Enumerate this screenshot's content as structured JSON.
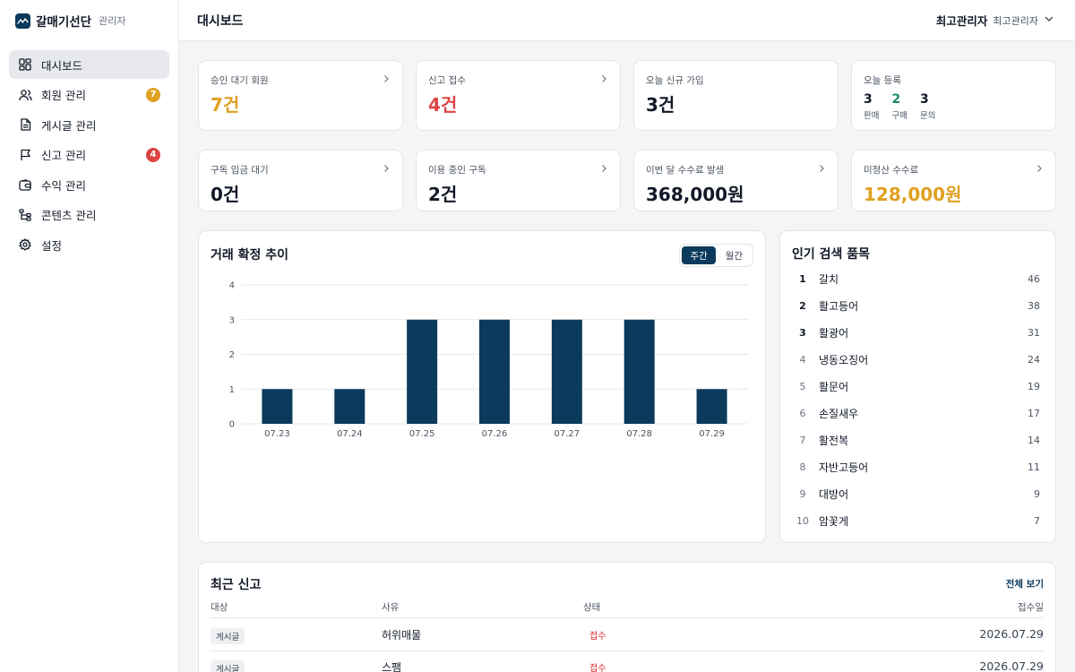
{
  "brand": {
    "name": "갈매기선단",
    "role": "관리자"
  },
  "sidebar": {
    "items": [
      {
        "label": "대시보드",
        "icon": "dashboard-icon"
      },
      {
        "label": "회원 관리",
        "icon": "users-icon",
        "badge": "7",
        "badge_color": "#e0a020"
      },
      {
        "label": "게시글 관리",
        "icon": "document-icon"
      },
      {
        "label": "신고 관리",
        "icon": "flag-icon",
        "badge": "4",
        "badge_color": "#dc4444"
      },
      {
        "label": "수익 관리",
        "icon": "wallet-icon"
      },
      {
        "label": "콘텐츠 관리",
        "icon": "tree-icon"
      },
      {
        "label": "설정",
        "icon": "gear-icon"
      }
    ]
  },
  "header": {
    "title": "대시보드",
    "user_name": "최고관리자",
    "user_role": "최고관리자"
  },
  "stats": {
    "pending_members": {
      "label": "승인 대기 회원",
      "value": "7건",
      "color": "#e0a020"
    },
    "reports": {
      "label": "신고 접수",
      "value": "4건",
      "color": "#dc4444"
    },
    "new_signups": {
      "label": "오늘 신규 가입",
      "value": "3건",
      "color": "#111827"
    },
    "today_reg": {
      "label": "오늘 등록",
      "items": [
        {
          "num": "3",
          "label": "판매",
          "color": "#111827"
        },
        {
          "num": "2",
          "label": "구매",
          "color": "#1f8a5c"
        },
        {
          "num": "3",
          "label": "문의",
          "color": "#111827"
        }
      ]
    },
    "sub_pending": {
      "label": "구독 입금 대기",
      "value": "0건",
      "color": "#111827"
    },
    "sub_active": {
      "label": "이용 중인 구독",
      "value": "2건",
      "color": "#111827"
    },
    "fee_month": {
      "label": "이번 달 수수료 발생",
      "value": "368,000원",
      "color": "#111827"
    },
    "fee_unpaid": {
      "label": "미정산 수수료",
      "value": "128,000원",
      "color": "#e0a020"
    }
  },
  "chart": {
    "title": "거래 확정 추이",
    "tabs": [
      "주간",
      "월간"
    ],
    "active_tab": 0
  },
  "chart_data": {
    "type": "bar",
    "categories": [
      "07.23",
      "07.24",
      "07.25",
      "07.26",
      "07.27",
      "07.28",
      "07.29"
    ],
    "values": [
      1,
      1,
      3,
      3,
      3,
      3,
      1
    ],
    "title": "거래 확정 추이",
    "xlabel": "",
    "ylabel": "",
    "ylim": [
      0,
      4
    ],
    "yticks": [
      0,
      1,
      2,
      3,
      4
    ],
    "grid": true,
    "bar_color": "#0b3a5c"
  },
  "popular": {
    "title": "인기 검색 품목",
    "items": [
      {
        "rank": "1",
        "name": "갈치",
        "count": "46"
      },
      {
        "rank": "2",
        "name": "활고등어",
        "count": "38"
      },
      {
        "rank": "3",
        "name": "활광어",
        "count": "31"
      },
      {
        "rank": "4",
        "name": "냉동오징어",
        "count": "24"
      },
      {
        "rank": "5",
        "name": "활문어",
        "count": "19"
      },
      {
        "rank": "6",
        "name": "손질새우",
        "count": "17"
      },
      {
        "rank": "7",
        "name": "활전복",
        "count": "14"
      },
      {
        "rank": "8",
        "name": "자반고등어",
        "count": "11"
      },
      {
        "rank": "9",
        "name": "대방어",
        "count": "9"
      },
      {
        "rank": "10",
        "name": "암꽃게",
        "count": "7"
      }
    ]
  },
  "reports": {
    "title": "최근 신고",
    "view_all": "전체 보기",
    "columns": [
      "대상",
      "사유",
      "상태",
      "접수일"
    ],
    "rows": [
      {
        "target": "게시글",
        "reason": "허위매물",
        "status": "접수",
        "date": "2026.07.29"
      },
      {
        "target": "게시글",
        "reason": "스팸",
        "status": "접수",
        "date": "2026.07.29"
      }
    ]
  }
}
